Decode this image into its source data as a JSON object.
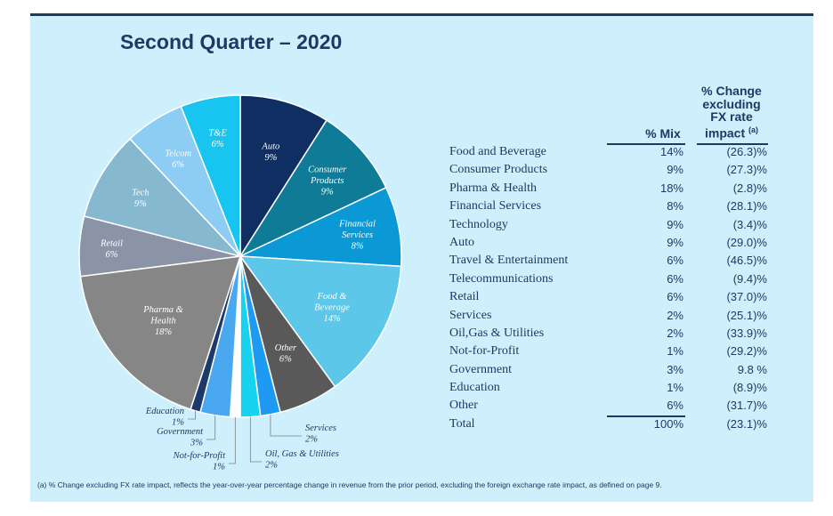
{
  "title": "Second Quarter – 2020",
  "chart_data": {
    "type": "pie",
    "title": "Second Quarter – 2020",
    "slices": [
      {
        "name": "Auto",
        "label": "Auto",
        "value": 9,
        "value_label": "9%",
        "color": "#0f2f63",
        "text_color": "#ffffff"
      },
      {
        "name": "Consumer Products",
        "label": "Consumer\nProducts",
        "value": 9,
        "value_label": "9%",
        "color": "#0f7b96",
        "text_color": "#ffffff"
      },
      {
        "name": "Financial Services",
        "label": "Financial\nServices",
        "value": 8,
        "value_label": "8%",
        "color": "#0b99d6",
        "text_color": "#ffffff"
      },
      {
        "name": "Food & Beverage",
        "label": "Food &\nBeverage",
        "value": 14,
        "value_label": "14%",
        "color": "#5cc7e8",
        "text_color": "#ffffff"
      },
      {
        "name": "Other",
        "label": "Other",
        "value": 6,
        "value_label": "6%",
        "color": "#595959",
        "text_color": "#ffffff"
      },
      {
        "name": "Services",
        "label": "Services",
        "value": 2,
        "value_label": "2%",
        "color": "#1f9af2",
        "text_color": "#1f3864"
      },
      {
        "name": "Oil, Gas & Utilities",
        "label": "Oil, Gas & Utilities",
        "value": 2,
        "value_label": "2%",
        "color": "#18d3ef",
        "text_color": "#1f3864"
      },
      {
        "name": "Not-for-Profit",
        "label": "Not-for-Profit",
        "value": 1,
        "value_label": "1%",
        "color": "#ffffff",
        "text_color": "#1f3864"
      },
      {
        "name": "Government",
        "label": "Government",
        "value": 3,
        "value_label": "3%",
        "color": "#4aa8f0",
        "text_color": "#1f3864"
      },
      {
        "name": "Education",
        "label": "Education",
        "value": 1,
        "value_label": "1%",
        "color": "#1b3a6b",
        "text_color": "#1f3864"
      },
      {
        "name": "Pharma & Health",
        "label": "Pharma &\nHealth",
        "value": 18,
        "value_label": "18%",
        "color": "#868686",
        "text_color": "#ffffff"
      },
      {
        "name": "Retail",
        "label": "Retail",
        "value": 6,
        "value_label": "6%",
        "color": "#8a94a6",
        "text_color": "#ffffff"
      },
      {
        "name": "Tech",
        "label": "Tech",
        "value": 9,
        "value_label": "9%",
        "color": "#86b8cf",
        "text_color": "#ffffff"
      },
      {
        "name": "Telcom",
        "label": "Telcom",
        "value": 6,
        "value_label": "6%",
        "color": "#8ecdf3",
        "text_color": "#ffffff"
      },
      {
        "name": "T&E",
        "label": "T&E",
        "value": 6,
        "value_label": "6%",
        "color": "#17c5f0",
        "text_color": "#ffffff"
      }
    ]
  },
  "table": {
    "header_mix": "% Mix",
    "header_change": [
      "% Change",
      "excluding",
      "FX rate",
      "impact"
    ],
    "header_change_note": "(a)",
    "rows": [
      {
        "name": "Food and Beverage",
        "mix": "14%",
        "change": "(26.3)%"
      },
      {
        "name": "Consumer Products",
        "mix": "9%",
        "change": "(27.3)%"
      },
      {
        "name": "Pharma & Health",
        "mix": "18%",
        "change": "(2.8)%"
      },
      {
        "name": "Financial Services",
        "mix": "8%",
        "change": "(28.1)%"
      },
      {
        "name": "Technology",
        "mix": "9%",
        "change": "(3.4)%"
      },
      {
        "name": "Auto",
        "mix": "9%",
        "change": "(29.0)%"
      },
      {
        "name": "Travel & Entertainment",
        "mix": "6%",
        "change": "(46.5)%"
      },
      {
        "name": "Telecommunications",
        "mix": "6%",
        "change": "(9.4)%"
      },
      {
        "name": "Retail",
        "mix": "6%",
        "change": "(37.0)%"
      },
      {
        "name": "Services",
        "mix": "2%",
        "change": "(25.1)%"
      },
      {
        "name": "Oil,Gas & Utilities",
        "mix": "2%",
        "change": "(33.9)%"
      },
      {
        "name": "Not-for-Profit",
        "mix": "1%",
        "change": "(29.2)%"
      },
      {
        "name": "Government",
        "mix": "3%",
        "change": "9.8 %"
      },
      {
        "name": "Education",
        "mix": "1%",
        "change": "(8.9)%"
      },
      {
        "name": "Other",
        "mix": "6%",
        "change": "(31.7)%"
      },
      {
        "name": "Total",
        "mix": "100%",
        "change": "(23.1)%"
      }
    ]
  },
  "footnote": "(a)    % Change excluding FX rate impact, reflects the year-over-year percentage change in revenue from the prior period, excluding the foreign exchange rate impact, as defined on page 9."
}
